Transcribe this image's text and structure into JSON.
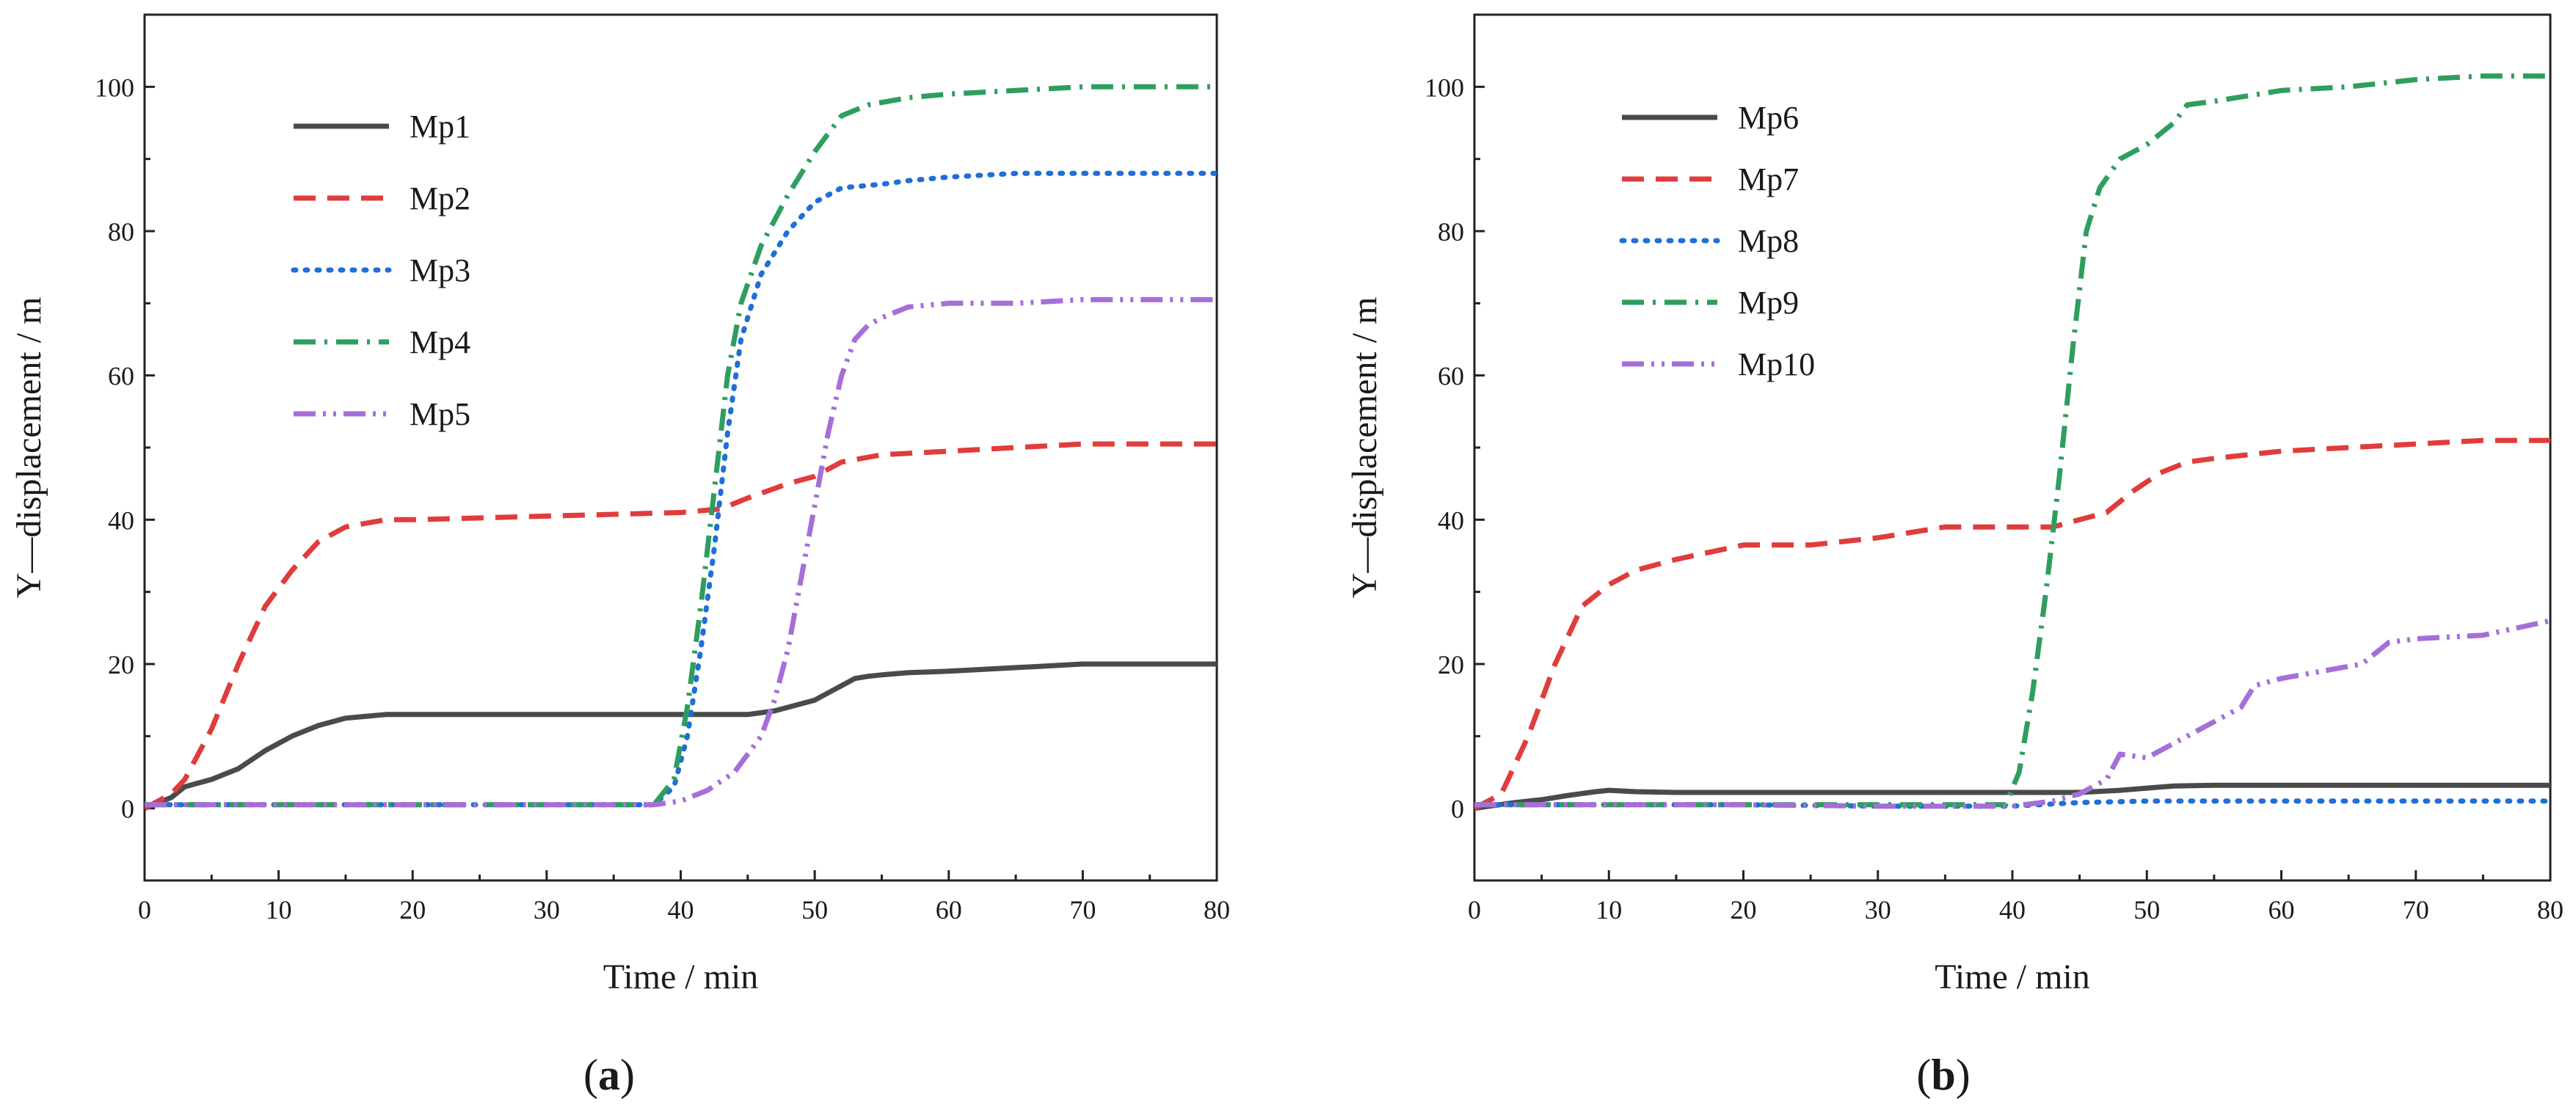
{
  "chart_data": [
    {
      "type": "line",
      "panel_label": "a",
      "title": "",
      "xlabel": "Time / min",
      "ylabel": "Y—displacement / m",
      "xlim": [
        0,
        80
      ],
      "ylim": [
        -10,
        110
      ],
      "xticks": [
        0,
        10,
        20,
        30,
        40,
        50,
        60,
        70,
        80
      ],
      "yticks": [
        0,
        20,
        40,
        60,
        80,
        100
      ],
      "grid": false,
      "legend_position": "top-left",
      "series": [
        {
          "name": "Mp1",
          "color": "#4a4a4a",
          "style": "solid",
          "x": [
            0,
            2,
            3,
            5,
            7,
            9,
            11,
            13,
            15,
            18,
            20,
            25,
            30,
            35,
            40,
            45,
            47,
            48,
            50,
            51,
            52,
            53,
            54,
            55,
            57,
            60,
            65,
            70,
            75,
            80
          ],
          "y": [
            0,
            1.5,
            3,
            4,
            5.5,
            8,
            10,
            11.5,
            12.5,
            13,
            13,
            13,
            13,
            13,
            13,
            13,
            13.5,
            14,
            15,
            16,
            17,
            18,
            18.3,
            18.5,
            18.8,
            19,
            19.5,
            20,
            20,
            20
          ]
        },
        {
          "name": "Mp2",
          "color": "#e03c3c",
          "style": "dashed",
          "x": [
            0,
            2,
            3,
            5,
            7,
            9,
            11,
            13,
            15,
            18,
            20,
            30,
            40,
            43,
            45,
            48,
            50,
            52,
            55,
            60,
            65,
            70,
            75,
            80
          ],
          "y": [
            0,
            2,
            4,
            11,
            20,
            28,
            33,
            37,
            39,
            40,
            40,
            40.5,
            41,
            41.5,
            43,
            45,
            46,
            48,
            49,
            49.5,
            50,
            50.5,
            50.5,
            50.5
          ]
        },
        {
          "name": "Mp3",
          "color": "#1f6fd6",
          "style": "dotted",
          "x": [
            0,
            5,
            10,
            20,
            30,
            38,
            39.5,
            40.5,
            41.5,
            42.5,
            43.5,
            44.5,
            46,
            48,
            50,
            52,
            55,
            57,
            60,
            65,
            70,
            75,
            80
          ],
          "y": [
            0.5,
            0.5,
            0.5,
            0.5,
            0.5,
            0.5,
            3,
            10,
            22,
            36,
            52,
            65,
            74,
            80,
            84,
            86,
            86.5,
            87,
            87.5,
            88,
            88,
            88,
            88
          ]
        },
        {
          "name": "Mp4",
          "color": "#2e9e5f",
          "style": "dashdot",
          "x": [
            0,
            5,
            10,
            20,
            30,
            38,
            39.5,
            40.5,
            41.5,
            42.5,
            43.5,
            44.5,
            46,
            48,
            50,
            52,
            54,
            57,
            60,
            65,
            70,
            75,
            80
          ],
          "y": [
            0.5,
            0.5,
            0.5,
            0.5,
            0.5,
            0.5,
            4,
            14,
            28,
            44,
            60,
            70,
            78,
            85,
            91,
            96,
            97.5,
            98.5,
            99,
            99.5,
            100,
            100,
            100
          ]
        },
        {
          "name": "Mp5",
          "color": "#a66ed8",
          "style": "dashdotdot",
          "x": [
            0,
            5,
            10,
            20,
            30,
            38,
            40,
            42,
            44,
            46,
            47,
            48,
            49,
            50,
            51,
            52,
            53,
            54,
            55,
            57,
            60,
            65,
            70,
            75,
            80
          ],
          "y": [
            0.5,
            0.5,
            0.5,
            0.5,
            0.5,
            0.5,
            1,
            2.5,
            5,
            10,
            15,
            22,
            32,
            42,
            52,
            60,
            65,
            67,
            68,
            69.5,
            70,
            70,
            70.5,
            70.5,
            70.5
          ]
        }
      ],
      "legend": [
        "Mp1",
        "Mp2",
        "Mp3",
        "Mp4",
        "Mp5"
      ]
    },
    {
      "type": "line",
      "panel_label": "b",
      "title": "",
      "xlabel": "Time / min",
      "ylabel": "Y—displacement / m",
      "xlim": [
        0,
        80
      ],
      "ylim": [
        -10,
        110
      ],
      "xticks": [
        0,
        10,
        20,
        30,
        40,
        50,
        60,
        70,
        80
      ],
      "yticks": [
        0,
        20,
        40,
        60,
        80,
        100
      ],
      "grid": false,
      "legend_position": "top-left",
      "series": [
        {
          "name": "Mp6",
          "color": "#4a4a4a",
          "style": "solid",
          "x": [
            0,
            3,
            5,
            7,
            9,
            10,
            12,
            15,
            20,
            30,
            40,
            45,
            48,
            50,
            52,
            55,
            60,
            70,
            80
          ],
          "y": [
            0,
            0.8,
            1.2,
            1.8,
            2.3,
            2.5,
            2.3,
            2.2,
            2.2,
            2.2,
            2.2,
            2.2,
            2.5,
            2.8,
            3.1,
            3.2,
            3.2,
            3.2,
            3.2
          ]
        },
        {
          "name": "Mp7",
          "color": "#e03c3c",
          "style": "dashed",
          "x": [
            0,
            2,
            4,
            6,
            8,
            10,
            12,
            15,
            20,
            25,
            30,
            35,
            40,
            43,
            45,
            47,
            49,
            51,
            53,
            55,
            60,
            65,
            70,
            75,
            80
          ],
          "y": [
            0,
            2,
            10,
            20,
            28,
            31,
            33,
            34.5,
            36.5,
            36.5,
            37.5,
            39,
            39,
            39,
            40,
            41,
            44,
            46.5,
            48,
            48.5,
            49.5,
            50,
            50.5,
            51,
            51
          ]
        },
        {
          "name": "Mp8",
          "color": "#1f6fd6",
          "style": "dotted",
          "x": [
            0,
            5,
            10,
            20,
            30,
            40,
            45,
            50,
            55,
            60,
            70,
            80
          ],
          "y": [
            0.5,
            0.5,
            0.5,
            0.5,
            0.3,
            0.3,
            0.8,
            1.0,
            1.0,
            1.0,
            1.0,
            1.0
          ]
        },
        {
          "name": "Mp9",
          "color": "#2e9e5f",
          "style": "dashdot",
          "x": [
            0,
            10,
            20,
            30,
            39.5,
            40.5,
            41.5,
            42.5,
            43.5,
            44.5,
            45.5,
            46.5,
            48,
            50,
            52,
            53,
            55,
            60,
            65,
            70,
            75,
            80
          ],
          "y": [
            0.5,
            0.5,
            0.5,
            0.5,
            0.5,
            5,
            16,
            30,
            46,
            64,
            80,
            86,
            90,
            92,
            95,
            97.5,
            98,
            99.5,
            100,
            101,
            101.5,
            101.5
          ]
        },
        {
          "name": "Mp10",
          "color": "#a66ed8",
          "style": "dashdotdot",
          "x": [
            0,
            10,
            20,
            30,
            40,
            43,
            45,
            47,
            48,
            50,
            52,
            53,
            55,
            57,
            58,
            60,
            63,
            66,
            68,
            70,
            75,
            80
          ],
          "y": [
            0.5,
            0.5,
            0.5,
            0.3,
            0.3,
            1,
            2,
            4,
            7.5,
            7,
            9,
            10,
            12,
            14,
            17,
            18,
            19,
            20,
            23,
            23.5,
            24,
            26
          ]
        }
      ],
      "legend": [
        "Mp6",
        "Mp7",
        "Mp8",
        "Mp9",
        "Mp10"
      ]
    }
  ],
  "panels": [
    {
      "label_open": "(",
      "label": "a",
      "label_close": ")"
    },
    {
      "label_open": "(",
      "label": "b",
      "label_close": ")"
    }
  ]
}
